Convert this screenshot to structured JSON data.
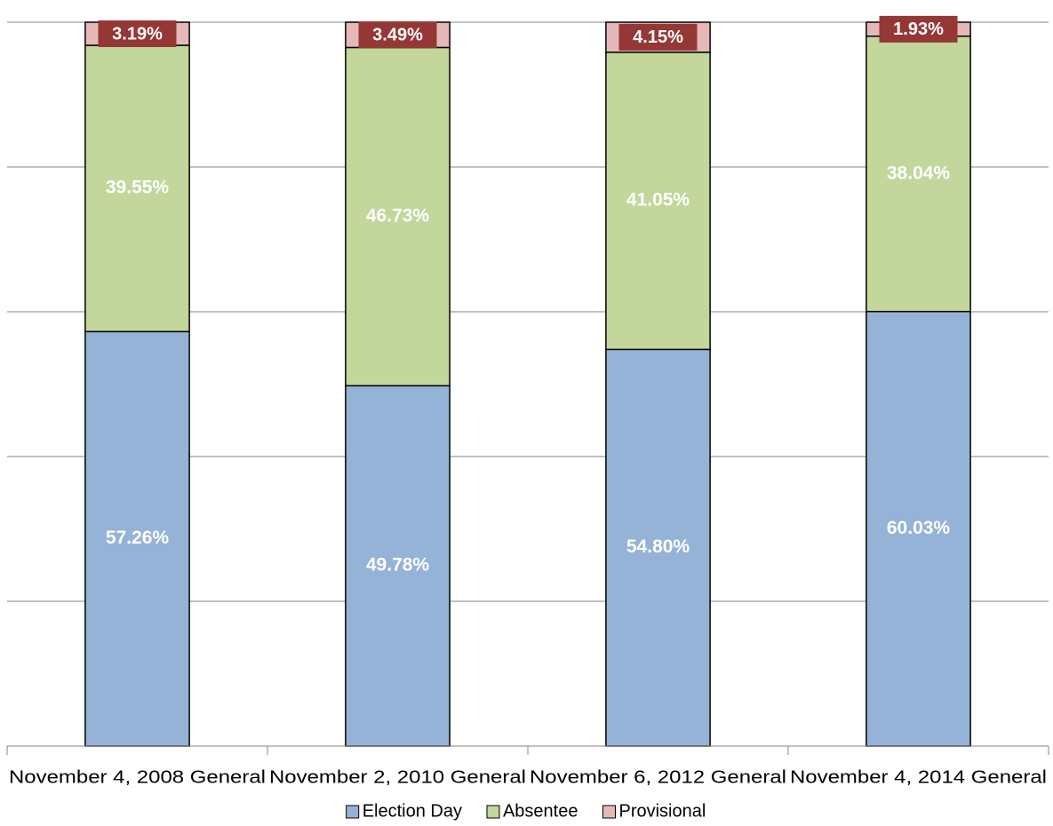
{
  "chart_data": {
    "type": "stacked_bar",
    "categories": [
      "November 4, 2008 General",
      "November 2, 2010 General",
      "November 6, 2012 General",
      "November 4, 2014 General"
    ],
    "series": [
      {
        "name": "Election Day",
        "color": "#95b3d7",
        "values": [
          57.26,
          49.78,
          54.8,
          60.03
        ],
        "value_labels": [
          "57.26%",
          "49.78%",
          "54.80%",
          "60.03%"
        ]
      },
      {
        "name": "Absentee",
        "color": "#c3d69b",
        "values": [
          39.55,
          46.73,
          41.05,
          38.04
        ],
        "value_labels": [
          "39.55%",
          "46.73%",
          "41.05%",
          "38.04%"
        ]
      },
      {
        "name": "Provisional",
        "color": "#e6b9b8",
        "values": [
          3.19,
          3.49,
          4.15,
          1.93
        ],
        "value_labels": [
          "3.19%",
          "3.49%",
          "4.15%",
          "1.93%"
        ]
      }
    ],
    "ylim": [
      0,
      100
    ],
    "yticks": [
      0,
      20,
      40,
      60,
      80,
      100
    ],
    "grid": true,
    "legend": "bottom"
  }
}
